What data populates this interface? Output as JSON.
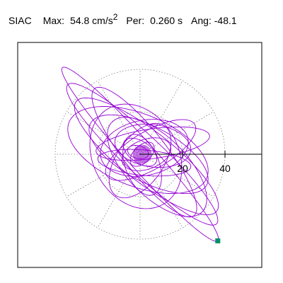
{
  "header": {
    "station": "SIAC",
    "max_label": "Max:",
    "max_value": "54.8",
    "max_unit": "cm/s",
    "max_unit_exp": "2",
    "period_label": "Per:",
    "period_value": "0.260 s",
    "angle_label": "Ang:",
    "angle_value": "-48.1"
  },
  "colors": {
    "trace": "#9400d3",
    "marker": "#00906a",
    "grid": "#808080",
    "axis": "#000000"
  },
  "chart_data": {
    "type": "scatter",
    "title": "SIAC Max: 54.8 cm/s2 Per: 0.260 s Ang: -48.1",
    "grid_rings": [
      20,
      40
    ],
    "spoke_angles_deg": [
      0,
      30,
      60,
      90,
      120,
      150,
      180,
      210,
      240,
      270,
      300,
      330
    ],
    "x_ticks": [
      {
        "value": 20,
        "label": "20"
      },
      {
        "value": 40,
        "label": "40"
      }
    ],
    "xlim": [
      -42,
      57
    ],
    "ylim": [
      -55,
      53
    ],
    "max_point": {
      "x": 36.6,
      "y": -40.8,
      "magnitude": 54.8,
      "angle_deg": -48.1
    },
    "orbit_ellipses": [
      {
        "a": 54.8,
        "b": 6.5,
        "rot_deg": -48.1,
        "cx": 0,
        "cy": 0
      },
      {
        "a": 48.0,
        "b": 9.0,
        "rot_deg": -43.0,
        "cx": 1,
        "cy": 0
      },
      {
        "a": 42.0,
        "b": 12.0,
        "rot_deg": -38.0,
        "cx": 3,
        "cy": -1
      },
      {
        "a": 38.0,
        "b": 10.0,
        "rot_deg": -52.0,
        "cx": 2,
        "cy": 1
      },
      {
        "a": 31.0,
        "b": 13.0,
        "rot_deg": -28.0,
        "cx": 4,
        "cy": 0
      },
      {
        "a": 35.0,
        "b": 17.0,
        "rot_deg": -22.0,
        "cx": -1,
        "cy": 2
      },
      {
        "a": 26.0,
        "b": 20.0,
        "rot_deg": -60.0,
        "cx": -2,
        "cy": -1
      },
      {
        "a": 24.0,
        "b": 9.0,
        "rot_deg": 30.0,
        "cx": 5,
        "cy": 2
      },
      {
        "a": 21.0,
        "b": 13.0,
        "rot_deg": 12.0,
        "cx": 2,
        "cy": 3
      },
      {
        "a": 18.0,
        "b": 10.0,
        "rot_deg": -8.0,
        "cx": 6,
        "cy": 4
      },
      {
        "a": 27.0,
        "b": 7.0,
        "rot_deg": 8.0,
        "cx": 6,
        "cy": 5
      },
      {
        "a": 20.0,
        "b": 11.0,
        "rot_deg": 55.0,
        "cx": 0,
        "cy": -3
      },
      {
        "a": 15.0,
        "b": 8.0,
        "rot_deg": -70.0,
        "cx": 1,
        "cy": -5
      },
      {
        "a": 12.0,
        "b": 7.0,
        "rot_deg": 20.0,
        "cx": 3,
        "cy": 0
      },
      {
        "a": 9.0,
        "b": 5.0,
        "rot_deg": -35.0,
        "cx": 0,
        "cy": 1
      },
      {
        "a": 7.0,
        "b": 4.0,
        "rot_deg": 45.0,
        "cx": 1,
        "cy": 0
      },
      {
        "a": 5.0,
        "b": 3.0,
        "rot_deg": -15.0,
        "cx": -1,
        "cy": 1
      },
      {
        "a": 30.0,
        "b": 14.0,
        "rot_deg": -45.0,
        "cx": 8,
        "cy": -6
      },
      {
        "a": 22.0,
        "b": 6.0,
        "rot_deg": -5.0,
        "cx": 2,
        "cy": -4
      }
    ]
  }
}
